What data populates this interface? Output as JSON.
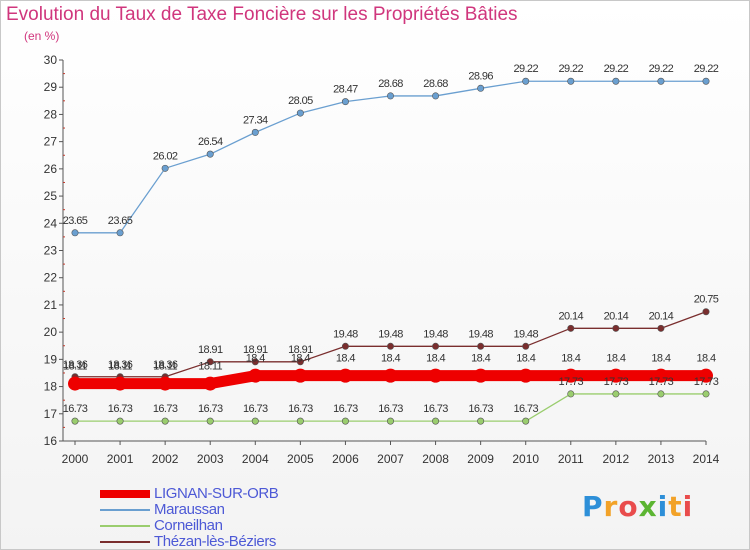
{
  "title": "Evolution du Taux de Taxe Foncière sur les Propriétés Bâties",
  "unit": "(en %)",
  "logo": "Proxiti",
  "chart_data": {
    "type": "line",
    "title": "Evolution du Taux de Taxe Foncière sur les Propriétés Bâties",
    "ylabel": "(en %)",
    "xlabel": "",
    "ylim": [
      16,
      30
    ],
    "yticks": [
      16,
      17,
      18,
      19,
      20,
      21,
      22,
      23,
      24,
      25,
      26,
      27,
      28,
      29,
      30
    ],
    "x": [
      "2000",
      "2001",
      "2002",
      "2003",
      "2004",
      "2005",
      "2006",
      "2007",
      "2008",
      "2009",
      "2010",
      "2011",
      "2012",
      "2013",
      "2014"
    ],
    "legend_position": "bottom-left",
    "series": [
      {
        "name": "LIGNAN-SUR-ORB",
        "color": "#ee0000",
        "values": [
          18.11,
          18.11,
          18.11,
          18.11,
          18.4,
          18.4,
          18.4,
          18.4,
          18.4,
          18.4,
          18.4,
          18.4,
          18.4,
          18.4,
          18.4
        ],
        "labels": [
          "18.11",
          "18.11",
          "18.11",
          "18.11",
          "18.4",
          "18.4",
          "18.4",
          "18.4",
          "18.4",
          "18.4",
          "18.4",
          "18.4",
          "18.4",
          "18.4",
          "18.4"
        ]
      },
      {
        "name": "Maraussan",
        "color": "#6a9fd0",
        "values": [
          23.65,
          23.65,
          26.02,
          26.54,
          27.34,
          28.05,
          28.47,
          28.68,
          28.68,
          28.96,
          29.22,
          29.22,
          29.22,
          29.22,
          29.22
        ],
        "labels": [
          "23.65",
          "23.65",
          "26.02",
          "26.54",
          "27.34",
          "28.05",
          "28.47",
          "28.68",
          "28.68",
          "28.96",
          "29.22",
          "29.22",
          "29.22",
          "29.22",
          "29.22"
        ]
      },
      {
        "name": "Corneilhan",
        "color": "#9acd6e",
        "values": [
          16.73,
          16.73,
          16.73,
          16.73,
          16.73,
          16.73,
          16.73,
          16.73,
          16.73,
          16.73,
          16.73,
          17.73,
          17.73,
          17.73,
          17.73
        ],
        "labels": [
          "16.73",
          "16.73",
          "16.73",
          "16.73",
          "16.73",
          "16.73",
          "16.73",
          "16.73",
          "16.73",
          "16.73",
          "16.73",
          "17.73",
          "17.73",
          "17.73",
          "17.73"
        ]
      },
      {
        "name": "Thézan-lès-Béziers",
        "color": "#7a2e2e",
        "values": [
          18.36,
          18.36,
          18.36,
          18.91,
          18.91,
          18.91,
          19.48,
          19.48,
          19.48,
          19.48,
          19.48,
          20.14,
          20.14,
          20.14,
          20.75
        ],
        "labels": [
          "18.36",
          "18.36",
          "18.36",
          "18.91",
          "18.91",
          "18.91",
          "19.48",
          "19.48",
          "19.48",
          "19.48",
          "19.48",
          "20.14",
          "20.14",
          "20.14",
          "20.75"
        ]
      }
    ]
  }
}
